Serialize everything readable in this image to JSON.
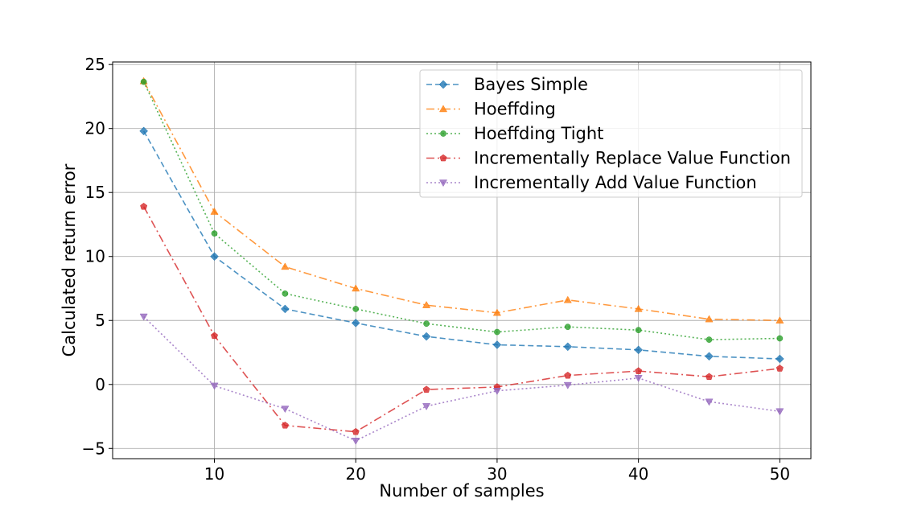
{
  "chart_data": {
    "type": "line",
    "xlabel": "Number of samples",
    "ylabel": "Calculated return error",
    "xlim": [
      2.8,
      52.2
    ],
    "ylim": [
      -5.8,
      25.2
    ],
    "x_ticks": [
      10,
      20,
      30,
      40,
      50
    ],
    "y_ticks": [
      -5,
      0,
      5,
      10,
      15,
      20,
      25
    ],
    "x_tick_labels": [
      "10",
      "20",
      "30",
      "40",
      "50"
    ],
    "y_tick_labels": [
      "−5",
      "0",
      "5",
      "10",
      "15",
      "20",
      "25"
    ],
    "grid": true,
    "legend_position": "top-right",
    "x": [
      5,
      10,
      15,
      20,
      25,
      30,
      35,
      40,
      45,
      50
    ],
    "series": [
      {
        "name": "Bayes Simple",
        "color": "#1f77b4",
        "dash": "7,4",
        "marker": "diamond",
        "values": [
          19.8,
          10.0,
          5.9,
          4.8,
          3.75,
          3.1,
          2.95,
          2.7,
          2.2,
          2.0
        ]
      },
      {
        "name": "Hoeffding",
        "color": "#ff7f0e",
        "dash": "10,4,2,4",
        "marker": "triangle-up",
        "values": [
          23.7,
          13.5,
          9.2,
          7.5,
          6.2,
          5.6,
          6.6,
          5.9,
          5.1,
          5.0
        ]
      },
      {
        "name": "Hoeffding Tight",
        "color": "#2ca02c",
        "dash": "2,3",
        "marker": "circle",
        "values": [
          23.65,
          11.8,
          7.1,
          5.9,
          4.75,
          4.1,
          4.5,
          4.25,
          3.5,
          3.6
        ]
      },
      {
        "name": "Incrementally Replace Value Function",
        "color": "#d62728",
        "dash": "10,4,2,4",
        "marker": "pentagon",
        "values": [
          13.9,
          3.8,
          -3.2,
          -3.7,
          -0.4,
          -0.2,
          0.7,
          1.05,
          0.6,
          1.25
        ]
      },
      {
        "name": "Incrementally Add Value Function",
        "color": "#9467bd",
        "dash": "2,3",
        "marker": "triangle-down",
        "values": [
          5.3,
          -0.1,
          -1.9,
          -4.4,
          -1.7,
          -0.5,
          -0.05,
          0.5,
          -1.35,
          -2.1
        ]
      }
    ]
  }
}
